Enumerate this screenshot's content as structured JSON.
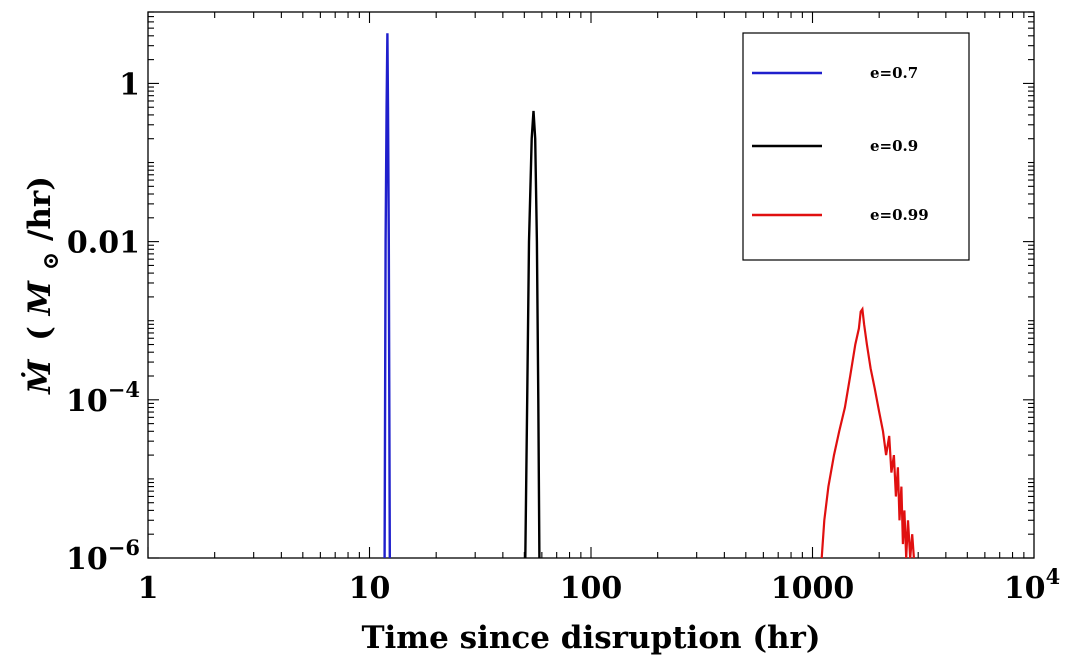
{
  "chart_data": {
    "type": "line",
    "xlabel": "Time since disruption (hr)",
    "ylabel": {
      "symbol": "Ṁ",
      "open": "(",
      "unit_symbol": "M",
      "unit_sub": "⊙",
      "close": "/hr)"
    },
    "x_scale": "log",
    "y_scale": "log",
    "xlim": [
      1,
      10000
    ],
    "ylim": [
      1e-06,
      8
    ],
    "grid": false,
    "legend_position": "top-right",
    "x_ticks": [
      {
        "value": 1,
        "label": "1"
      },
      {
        "value": 10,
        "label": "10"
      },
      {
        "value": 100,
        "label": "100"
      },
      {
        "value": 1000,
        "label": "1000"
      },
      {
        "value": 10000,
        "label": "10",
        "exp": "4"
      }
    ],
    "y_ticks": [
      {
        "value": 1e-06,
        "label": "10",
        "exp": "−6"
      },
      {
        "value": 0.0001,
        "label": "10",
        "exp": "−4"
      },
      {
        "value": 0.01,
        "label": "0.01"
      },
      {
        "value": 1,
        "label": "1"
      }
    ],
    "series": [
      {
        "name": "e=0.7",
        "color": "#1f1fcc",
        "points": [
          [
            11.7,
            1e-06
          ],
          [
            11.82,
            0.01
          ],
          [
            11.95,
            0.5
          ],
          [
            12.05,
            4.3
          ],
          [
            12.12,
            0.5
          ],
          [
            12.22,
            0.01
          ],
          [
            12.35,
            1e-06
          ]
        ]
      },
      {
        "name": "e=0.9",
        "color": "#000000",
        "points": [
          [
            50.5,
            1e-06
          ],
          [
            51.5,
            0.0001
          ],
          [
            52.5,
            0.01
          ],
          [
            54.0,
            0.2
          ],
          [
            55.0,
            0.45
          ],
          [
            56.0,
            0.2
          ],
          [
            57.0,
            0.01
          ],
          [
            57.8,
            0.0001
          ],
          [
            58.5,
            1e-06
          ]
        ]
      },
      {
        "name": "e=0.99",
        "color": "#e01010",
        "points": [
          [
            1100,
            1e-06
          ],
          [
            1130,
            3e-06
          ],
          [
            1180,
            8e-06
          ],
          [
            1250,
            2e-05
          ],
          [
            1320,
            4e-05
          ],
          [
            1400,
            8e-05
          ],
          [
            1480,
            0.0002
          ],
          [
            1560,
            0.0005
          ],
          [
            1620,
            0.0008
          ],
          [
            1650,
            0.0013
          ],
          [
            1680,
            0.0014
          ],
          [
            1710,
            0.0009
          ],
          [
            1760,
            0.0005
          ],
          [
            1830,
            0.00025
          ],
          [
            1910,
            0.00014
          ],
          [
            2000,
            7e-05
          ],
          [
            2080,
            4e-05
          ],
          [
            2150,
            2e-05
          ],
          [
            2220,
            3.5e-05
          ],
          [
            2270,
            1.2e-05
          ],
          [
            2330,
            2e-05
          ],
          [
            2380,
            6e-06
          ],
          [
            2430,
            1.4e-05
          ],
          [
            2470,
            3e-06
          ],
          [
            2520,
            8e-06
          ],
          [
            2560,
            1.5e-06
          ],
          [
            2600,
            4e-06
          ],
          [
            2650,
            1e-06
          ],
          [
            2700,
            3e-06
          ],
          [
            2760,
            1e-06
          ],
          [
            2820,
            2e-06
          ],
          [
            2870,
            1e-06
          ]
        ]
      }
    ]
  }
}
